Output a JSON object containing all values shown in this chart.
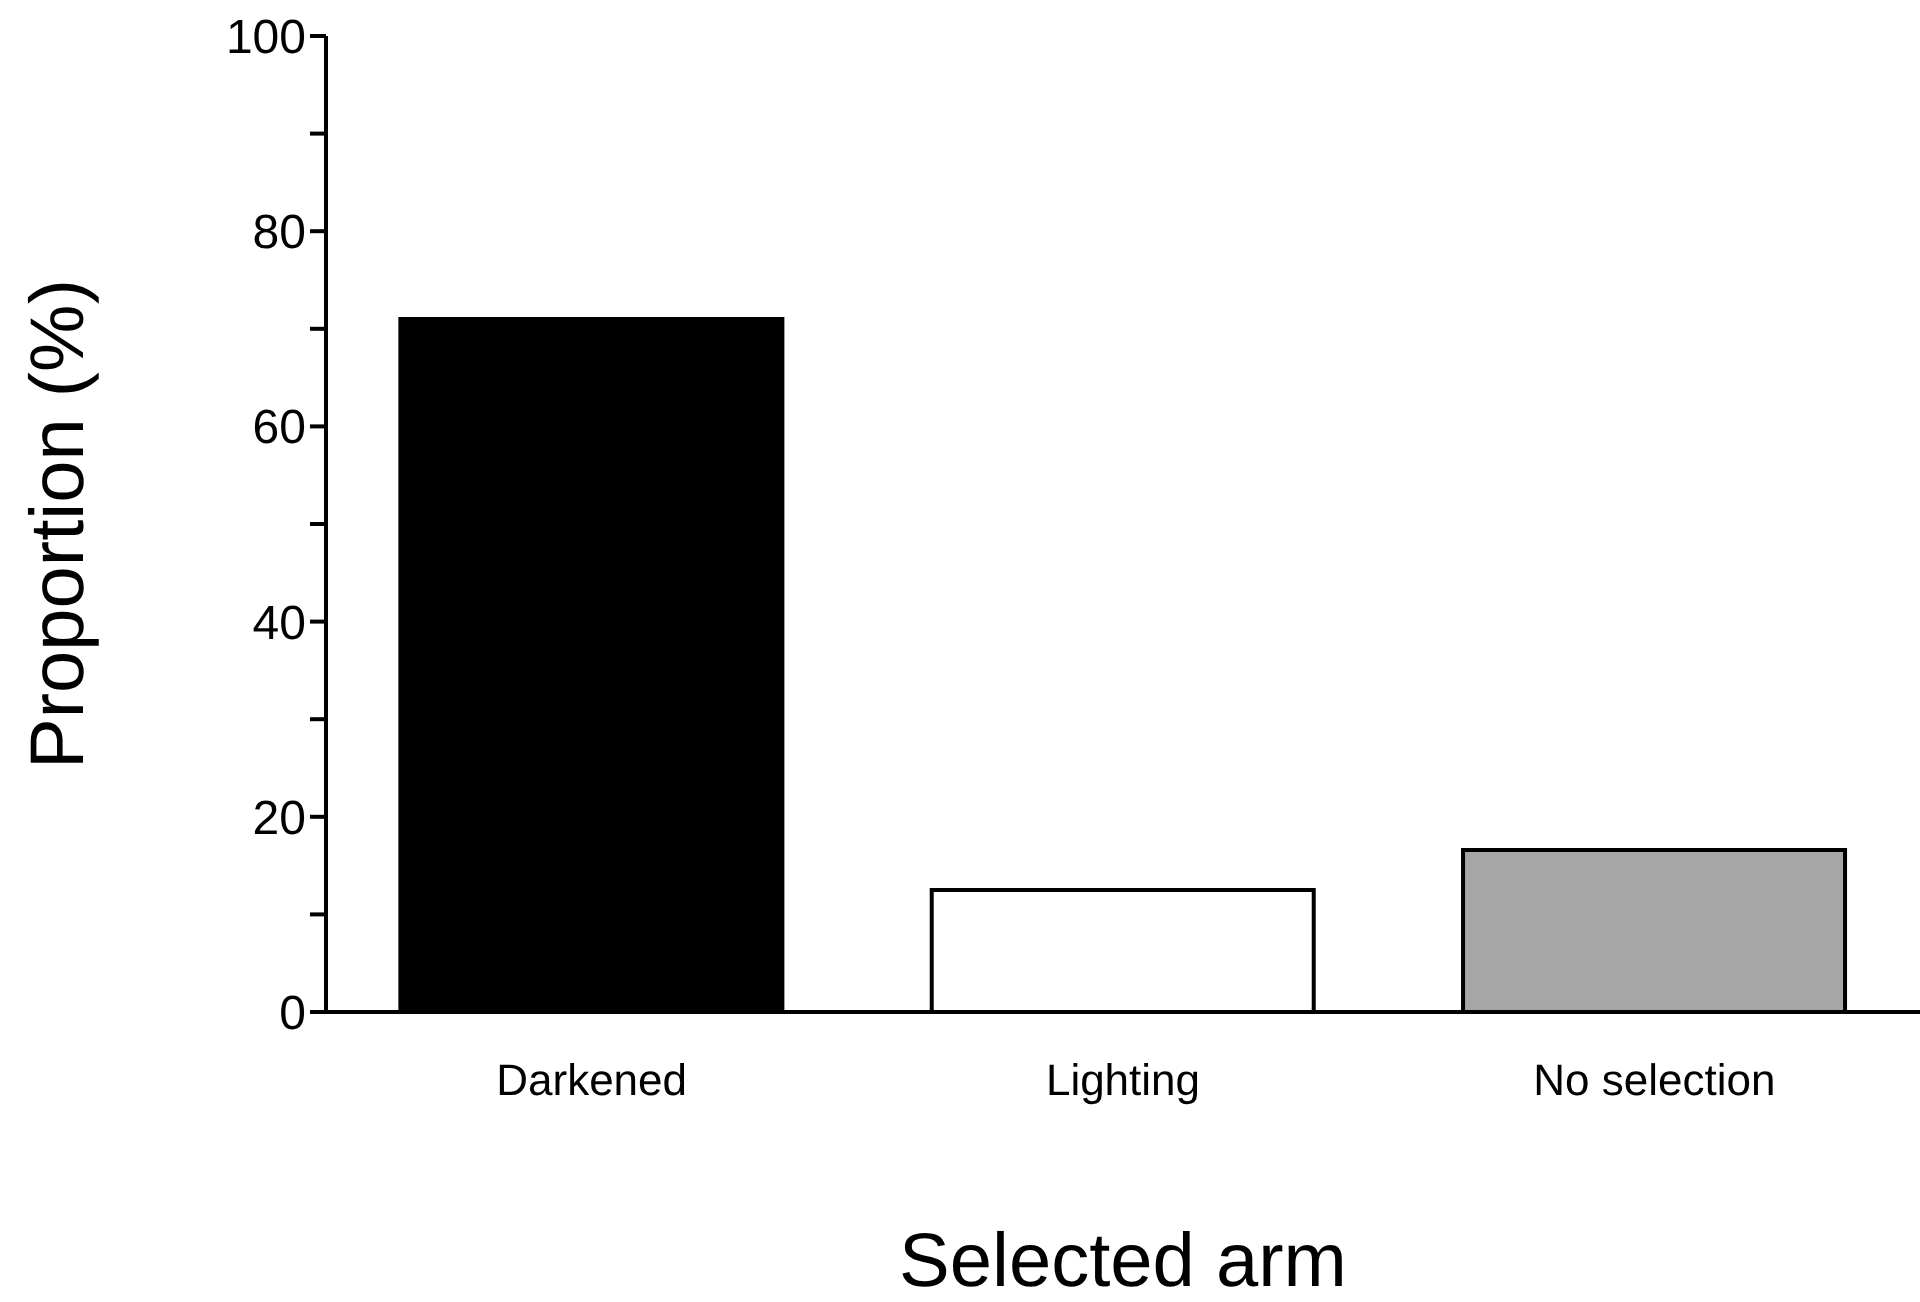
{
  "chart_data": {
    "type": "bar",
    "xlabel": "Selected arm",
    "ylabel": "Proportion (%)",
    "categories": [
      "Darkened",
      "Lighting",
      "No selection"
    ],
    "values": [
      71,
      12.5,
      16.6
    ],
    "colors": [
      "#000000",
      "#ffffff",
      "#a6a6a6"
    ],
    "ylim": [
      0,
      100
    ],
    "yticks": [
      0,
      {
        "value": 10,
        "label": null
      },
      20,
      {
        "value": 30,
        "label": null
      },
      40,
      {
        "value": 50,
        "label": null
      },
      60,
      {
        "value": 70,
        "label": null
      },
      80,
      {
        "value": 90,
        "label": null
      },
      100
    ],
    "grid": false,
    "legend": false
  }
}
